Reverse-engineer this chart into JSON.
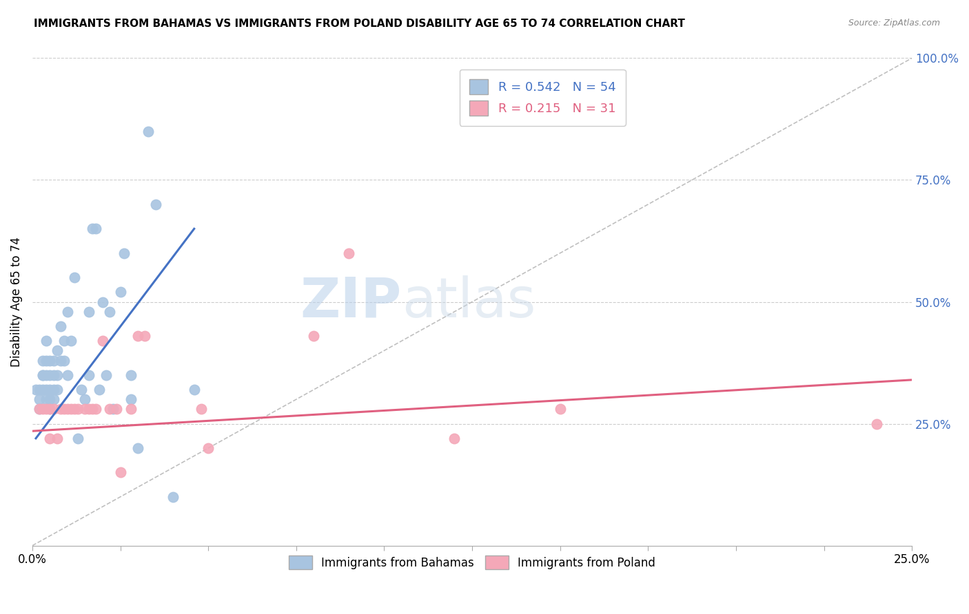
{
  "title": "IMMIGRANTS FROM BAHAMAS VS IMMIGRANTS FROM POLAND DISABILITY AGE 65 TO 74 CORRELATION CHART",
  "source": "Source: ZipAtlas.com",
  "ylabel": "Disability Age 65 to 74",
  "ylabel_right_ticks": [
    "100.0%",
    "75.0%",
    "50.0%",
    "25.0%"
  ],
  "ylabel_right_vals": [
    1.0,
    0.75,
    0.5,
    0.25
  ],
  "xlim": [
    0.0,
    0.25
  ],
  "ylim": [
    0.0,
    1.0
  ],
  "watermark_text": "ZIP",
  "watermark_text2": "atlas",
  "bahamas_R": 0.542,
  "bahamas_N": 54,
  "poland_R": 0.215,
  "poland_N": 31,
  "bahamas_color": "#a8c4e0",
  "poland_color": "#f4a8b8",
  "bahamas_line_color": "#4472c4",
  "poland_line_color": "#e06080",
  "diag_line_color": "#b0b0b0",
  "bahamas_x": [
    0.001,
    0.002,
    0.002,
    0.002,
    0.003,
    0.003,
    0.003,
    0.003,
    0.004,
    0.004,
    0.004,
    0.004,
    0.004,
    0.005,
    0.005,
    0.005,
    0.005,
    0.005,
    0.006,
    0.006,
    0.006,
    0.006,
    0.007,
    0.007,
    0.007,
    0.008,
    0.008,
    0.009,
    0.009,
    0.01,
    0.01,
    0.011,
    0.012,
    0.013,
    0.014,
    0.015,
    0.016,
    0.016,
    0.017,
    0.018,
    0.019,
    0.02,
    0.021,
    0.022,
    0.023,
    0.025,
    0.026,
    0.028,
    0.028,
    0.03,
    0.033,
    0.035,
    0.04,
    0.046
  ],
  "bahamas_y": [
    0.32,
    0.28,
    0.3,
    0.32,
    0.32,
    0.35,
    0.35,
    0.38,
    0.3,
    0.32,
    0.35,
    0.38,
    0.42,
    0.28,
    0.3,
    0.32,
    0.35,
    0.38,
    0.3,
    0.32,
    0.35,
    0.38,
    0.32,
    0.35,
    0.4,
    0.38,
    0.45,
    0.38,
    0.42,
    0.35,
    0.48,
    0.42,
    0.55,
    0.22,
    0.32,
    0.3,
    0.35,
    0.48,
    0.65,
    0.65,
    0.32,
    0.5,
    0.35,
    0.48,
    0.28,
    0.52,
    0.6,
    0.3,
    0.35,
    0.2,
    0.85,
    0.7,
    0.1,
    0.32
  ],
  "poland_x": [
    0.002,
    0.003,
    0.004,
    0.005,
    0.005,
    0.006,
    0.007,
    0.008,
    0.009,
    0.01,
    0.011,
    0.012,
    0.013,
    0.015,
    0.016,
    0.017,
    0.018,
    0.02,
    0.022,
    0.024,
    0.025,
    0.028,
    0.03,
    0.032,
    0.048,
    0.05,
    0.08,
    0.09,
    0.12,
    0.15,
    0.24
  ],
  "poland_y": [
    0.28,
    0.28,
    0.28,
    0.28,
    0.22,
    0.28,
    0.22,
    0.28,
    0.28,
    0.28,
    0.28,
    0.28,
    0.28,
    0.28,
    0.28,
    0.28,
    0.28,
    0.42,
    0.28,
    0.28,
    0.15,
    0.28,
    0.43,
    0.43,
    0.28,
    0.2,
    0.43,
    0.6,
    0.22,
    0.28,
    0.25
  ],
  "bahamas_trend_x": [
    0.001,
    0.046
  ],
  "bahamas_trend_y": [
    0.22,
    0.65
  ],
  "poland_trend_x": [
    0.0,
    0.25
  ],
  "poland_trend_y": [
    0.235,
    0.34
  ],
  "diag_trend_x": [
    0.0,
    0.25
  ],
  "diag_trend_y": [
    0.0,
    1.0
  ]
}
